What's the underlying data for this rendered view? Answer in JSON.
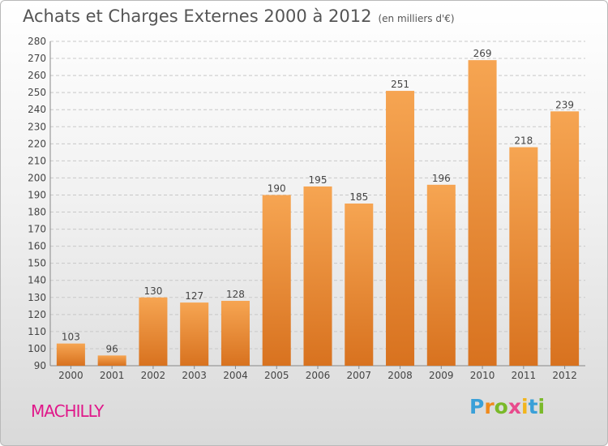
{
  "header": {
    "title": "Achats et Charges Externes 2000 à 2012",
    "subtitle": "(en milliers d'€)"
  },
  "footer": {
    "commune": "MACHILLY",
    "brand_letters": [
      {
        "ch": "P",
        "color": "#3aa0d8"
      },
      {
        "ch": "r",
        "color": "#f08a1c"
      },
      {
        "ch": "o",
        "color": "#7ab929"
      },
      {
        "ch": "x",
        "color": "#e84a8c"
      },
      {
        "ch": "i",
        "color": "#f2b51c"
      },
      {
        "ch": "t",
        "color": "#3aa0d8"
      },
      {
        "ch": "i",
        "color": "#7ab929"
      }
    ]
  },
  "colors": {
    "bar_top": "#f6a552",
    "bar_bottom": "#d8721f",
    "title": "#555555",
    "commune": "#e0188a"
  },
  "chart_data": {
    "type": "bar",
    "title": "Achats et Charges Externes 2000 à 2012",
    "subtitle": "(en milliers d'€)",
    "categories": [
      "2000",
      "2001",
      "2002",
      "2003",
      "2004",
      "2005",
      "2006",
      "2007",
      "2008",
      "2009",
      "2010",
      "2011",
      "2012"
    ],
    "values": [
      103,
      96,
      130,
      127,
      128,
      190,
      195,
      185,
      251,
      196,
      269,
      218,
      239
    ],
    "ylim": [
      90,
      280
    ],
    "yticks": [
      90,
      100,
      110,
      120,
      130,
      140,
      150,
      160,
      170,
      180,
      190,
      200,
      210,
      220,
      230,
      240,
      250,
      260,
      270,
      280
    ],
    "grid": true,
    "data_labels": true
  }
}
